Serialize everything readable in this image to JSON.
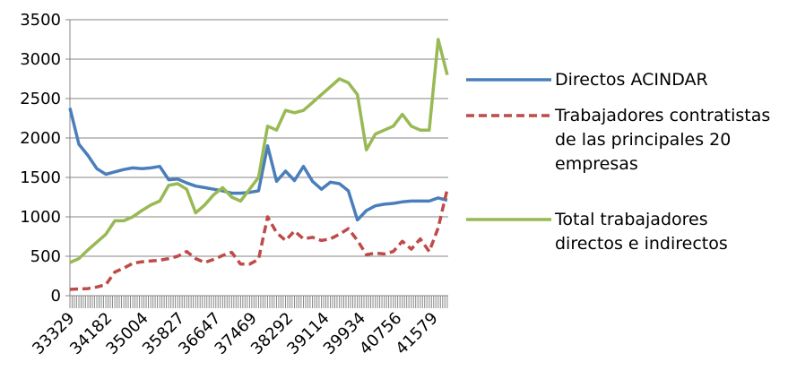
{
  "chart_data": {
    "type": "line",
    "x": [
      33329,
      33533,
      33737,
      33941,
      34145,
      34349,
      34553,
      34757,
      34961,
      35165,
      35369,
      35573,
      35777,
      35981,
      36185,
      36389,
      36593,
      36797,
      37001,
      37205,
      37409,
      37613,
      37817,
      38021,
      38225,
      38429,
      38633,
      38837,
      39041,
      39245,
      39449,
      39653,
      39857,
      40061,
      40265,
      40469,
      40673,
      40877,
      41081,
      41285,
      41489,
      41693,
      41897
    ],
    "xlim": [
      33329,
      41920
    ],
    "xticks": [
      33329,
      34182,
      35004,
      35827,
      36647,
      37469,
      38292,
      39114,
      39934,
      40756,
      41579
    ],
    "ylim": [
      0,
      3500
    ],
    "yticks": [
      0,
      500,
      1000,
      1500,
      2000,
      2500,
      3000,
      3500
    ],
    "grid": true,
    "series": [
      {
        "name": "Directos ACINDAR",
        "color": "#4a7ebb",
        "dash": false,
        "values": [
          2380,
          1920,
          1780,
          1610,
          1540,
          1570,
          1600,
          1620,
          1610,
          1620,
          1640,
          1470,
          1480,
          1430,
          1390,
          1370,
          1350,
          1330,
          1300,
          1300,
          1310,
          1330,
          1900,
          1450,
          1580,
          1460,
          1640,
          1450,
          1350,
          1440,
          1420,
          1330,
          960,
          1080,
          1140,
          1160,
          1170,
          1190,
          1200,
          1200,
          1200,
          1240,
          1210
        ]
      },
      {
        "name": "Trabajadores contratistas de las principales 20 empresas",
        "color": "#be4b48",
        "dash": true,
        "values": [
          80,
          85,
          90,
          110,
          140,
          300,
          350,
          410,
          430,
          440,
          450,
          470,
          500,
          560,
          470,
          420,
          460,
          510,
          550,
          400,
          400,
          460,
          1000,
          800,
          700,
          820,
          720,
          740,
          700,
          720,
          780,
          850,
          700,
          520,
          540,
          530,
          560,
          690,
          590,
          720,
          560,
          860,
          1350
        ]
      },
      {
        "name": "Total trabajadores directos e indirectos",
        "color": "#98b954",
        "dash": false,
        "values": [
          420,
          470,
          580,
          680,
          780,
          950,
          950,
          1000,
          1080,
          1150,
          1200,
          1400,
          1420,
          1350,
          1050,
          1150,
          1280,
          1370,
          1250,
          1200,
          1350,
          1500,
          2150,
          2100,
          2350,
          2320,
          2350,
          2450,
          2550,
          2650,
          2750,
          2700,
          2550,
          1850,
          2050,
          2100,
          2150,
          2300,
          2150,
          2100,
          2100,
          3250,
          2800
        ]
      }
    ]
  }
}
